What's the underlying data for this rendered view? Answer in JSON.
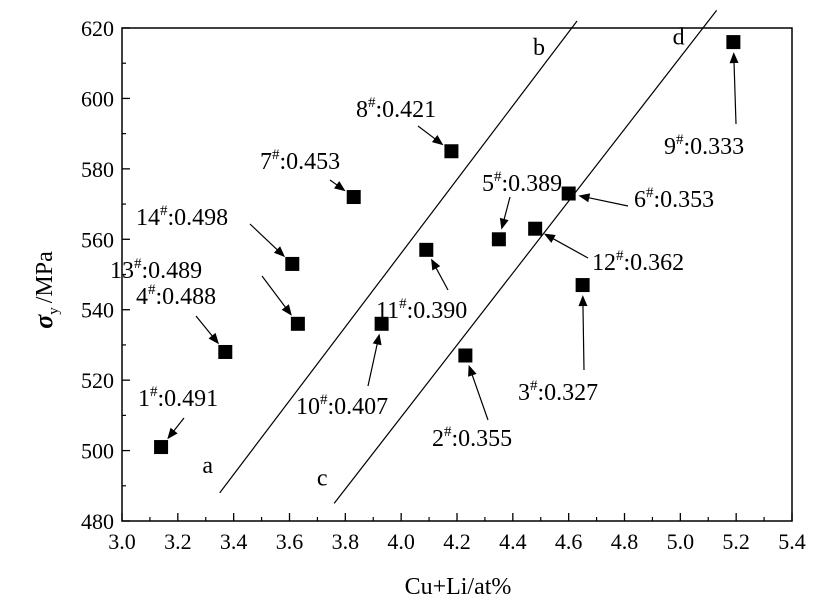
{
  "chart_data": {
    "type": "scatter",
    "xlabel": "Cu+Li/at%",
    "ylabel_symbol": "σ",
    "ylabel_subscript": "y",
    "ylabel_unit": "/MPa",
    "xlim": [
      3.0,
      5.4
    ],
    "ylim": [
      480,
      620
    ],
    "xticks": [
      "3.0",
      "3.2",
      "3.4",
      "3.6",
      "3.8",
      "4.0",
      "4.2",
      "4.4",
      "4.6",
      "4.8",
      "5.0",
      "5.2",
      "5.4"
    ],
    "yticks": [
      "480",
      "500",
      "520",
      "540",
      "560",
      "580",
      "600",
      "620"
    ],
    "points": [
      {
        "id": "1",
        "sup": "#",
        "value": ":0.491",
        "x": 3.14,
        "y": 501
      },
      {
        "id": "2",
        "sup": "#",
        "value": ":0.355",
        "x": 4.23,
        "y": 527
      },
      {
        "id": "3",
        "sup": "#",
        "value": ":0.327",
        "x": 4.65,
        "y": 547
      },
      {
        "id": "4",
        "sup": "#",
        "value": ":0.488",
        "x": 3.37,
        "y": 528
      },
      {
        "id": "5",
        "sup": "#",
        "value": ":0.389",
        "x": 4.35,
        "y": 560
      },
      {
        "id": "6",
        "sup": "#",
        "value": ":0.353",
        "x": 4.6,
        "y": 573
      },
      {
        "id": "7",
        "sup": "#",
        "value": ":0.453",
        "x": 3.83,
        "y": 572
      },
      {
        "id": "8",
        "sup": "#",
        "value": ":0.421",
        "x": 4.18,
        "y": 585
      },
      {
        "id": "9",
        "sup": "#",
        "value": ":0.333",
        "x": 5.19,
        "y": 616
      },
      {
        "id": "10",
        "sup": "#",
        "value": ":0.407",
        "x": 3.93,
        "y": 536
      },
      {
        "id": "11",
        "sup": "#",
        "value": ":0.390",
        "x": 4.09,
        "y": 557
      },
      {
        "id": "12",
        "sup": "#",
        "value": ":0.362",
        "x": 4.48,
        "y": 563
      },
      {
        "id": "13",
        "sup": "#",
        "value": ":0.489",
        "x": 3.63,
        "y": 536
      },
      {
        "id": "14",
        "sup": "#",
        "value": ":0.498",
        "x": 3.61,
        "y": 553
      }
    ],
    "lines": [
      {
        "start_label": "a",
        "end_label": "b",
        "x1": 3.35,
        "y1": 488,
        "x2": 4.63,
        "y2": 622
      },
      {
        "start_label": "c",
        "end_label": "d",
        "x1": 3.76,
        "y1": 485,
        "x2": 5.13,
        "y2": 625
      }
    ]
  }
}
